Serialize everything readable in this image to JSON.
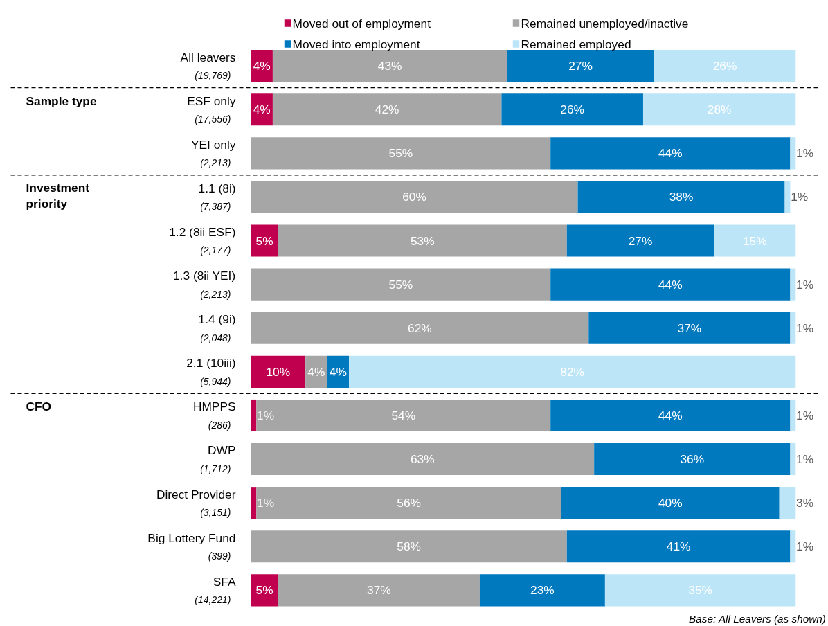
{
  "chart_data": {
    "type": "bar",
    "orientation": "horizontal",
    "stacked": true,
    "legend": "top",
    "categories": [
      "All leavers\n(19,769)",
      "ESF only\n(17,556)",
      "YEI only\n(2,213)",
      "1.1 (8i)\n(7,387)",
      "1.2 (8ii ESF)\n(2,177)",
      "1.3 (8ii YEI)\n(2,213)",
      "1.4 (9i)\n(2,048)",
      "2.1 (10iii)\n(5,944)",
      "HMPPS\n(286)",
      "DWP\n(1,712)",
      "Direct Provider\n(3,151)",
      "Big Lottery Fund\n(399)",
      "SFA\n(14,221)"
    ],
    "series": [
      {
        "name": "Moved out of employment",
        "color": "#c0004f",
        "values": [
          4,
          4,
          null,
          null,
          5,
          null,
          null,
          10,
          1,
          null,
          1,
          null,
          5
        ],
        "value_labels": [
          "4%",
          "4%",
          null,
          null,
          "5%",
          null,
          null,
          "10%",
          "1%",
          null,
          "1%",
          null,
          "5%"
        ]
      },
      {
        "name": "Remained unemployed/inactive",
        "color": "#a6a6a6",
        "values": [
          43,
          42,
          55,
          60,
          53,
          55,
          62,
          4,
          54,
          63,
          56,
          58,
          37
        ],
        "value_labels": [
          "43%",
          "42%",
          "55%",
          "60%",
          "53%",
          "55%",
          "62%",
          "4%",
          "54%",
          "63%",
          "56%",
          "58%",
          "37%"
        ]
      },
      {
        "name": "Moved into employment",
        "color": "#0079bf",
        "values": [
          27,
          26,
          44,
          38,
          27,
          44,
          37,
          4,
          44,
          36,
          40,
          41,
          23
        ],
        "value_labels": [
          "27%",
          "26%",
          "44%",
          "38%",
          "27%",
          "44%",
          "37%",
          "4%",
          "44%",
          "36%",
          "40%",
          "41%",
          "23%"
        ]
      },
      {
        "name": "Remained employed",
        "color": "#bde5f8",
        "values": [
          26,
          28,
          1,
          1,
          15,
          1,
          1,
          82,
          1,
          1,
          3,
          1,
          35
        ],
        "value_labels": [
          "26%",
          "28%",
          "1%",
          "1%",
          "15%",
          "1%",
          "1%",
          "82%",
          "1%",
          "1%",
          "3%",
          "1%",
          "35%"
        ]
      }
    ],
    "annotations": [
      "Sample type",
      "Investment\npriority",
      "CFO",
      "Base: All Leavers (as shown)"
    ]
  }
}
